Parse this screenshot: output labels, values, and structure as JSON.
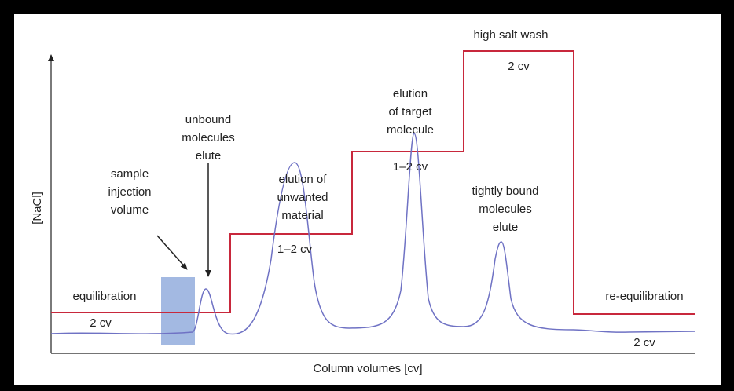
{
  "axes": {
    "y_label": "[NaCl]",
    "x_label": "Column volumes [cv]"
  },
  "phases": {
    "equilibration": {
      "label": "equilibration",
      "volume": "2 cv"
    },
    "sample": {
      "lines": [
        "sample",
        "injection",
        "volume"
      ]
    },
    "unbound": {
      "lines": [
        "unbound",
        "molecules",
        "elute"
      ]
    },
    "unwanted": {
      "lines": [
        "elution of",
        "unwanted",
        "material"
      ],
      "volume": "1–2 cv"
    },
    "target": {
      "lines": [
        "elution",
        "of target",
        "molecule"
      ],
      "volume": "1–2 cv"
    },
    "tightly_bound": {
      "lines": [
        "tightly bound",
        "molecules",
        "elute"
      ]
    },
    "high_salt": {
      "label": "high salt wash",
      "volume": "2 cv"
    },
    "re_equilibration": {
      "label": "re-equilibration",
      "volume": "2 cv"
    }
  }
}
